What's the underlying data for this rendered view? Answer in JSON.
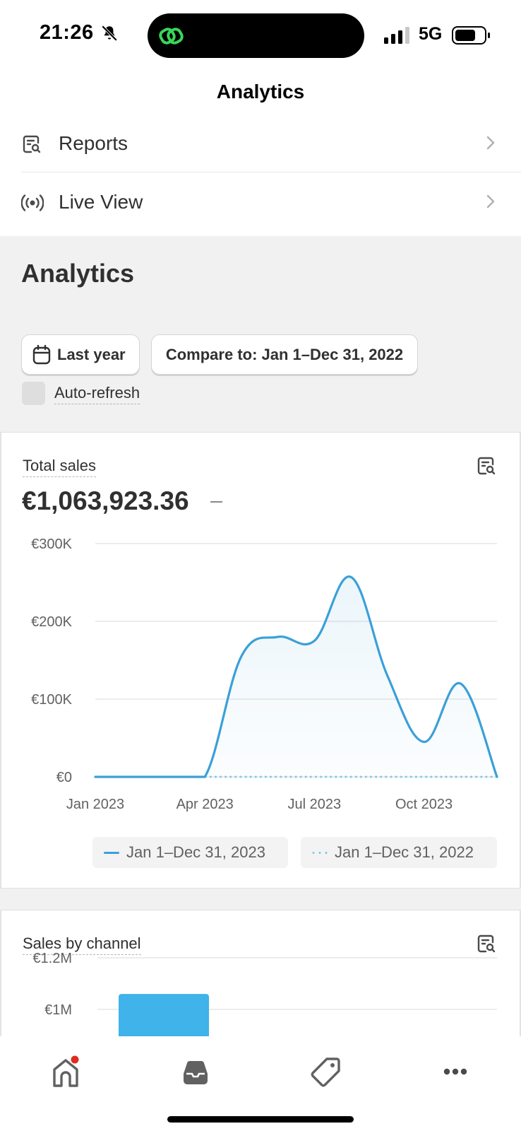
{
  "status": {
    "time": "21:26",
    "network": "5G"
  },
  "nav": {
    "title": "Analytics"
  },
  "menu": {
    "items": [
      {
        "label": "Reports",
        "icon": "report-search-icon"
      },
      {
        "label": "Live View",
        "icon": "broadcast-icon"
      }
    ]
  },
  "section": {
    "title": "Analytics",
    "date_range_label": "Last year",
    "compare_label": "Compare to: Jan 1–Dec 31, 2022",
    "auto_refresh_label": "Auto-refresh",
    "auto_refresh_checked": false
  },
  "total_sales": {
    "title": "Total sales",
    "value": "€1,063,923.36",
    "change": "–"
  },
  "chart_data": [
    {
      "type": "line",
      "title": "Total sales",
      "y_ticks": [
        "€300K",
        "€200K",
        "€100K",
        "€0"
      ],
      "x_ticks": [
        "Jan 2023",
        "Apr 2023",
        "Jul 2023",
        "Oct 2023"
      ],
      "ylim": [
        0,
        300000
      ],
      "x": [
        "2023-01",
        "2023-02",
        "2023-03",
        "2023-04",
        "2023-05",
        "2023-06",
        "2023-07",
        "2023-08",
        "2023-09",
        "2023-10",
        "2023-11",
        "2023-12"
      ],
      "series": [
        {
          "name": "Jan 1–Dec 31, 2023",
          "style": "solid",
          "color": "#3aa0d8",
          "values": [
            0,
            0,
            0,
            0,
            155000,
            180000,
            175000,
            257000,
            130000,
            45000,
            120000,
            0
          ]
        },
        {
          "name": "Jan 1–Dec 31, 2022",
          "style": "dotted",
          "color": "#7ec8e8",
          "values": [
            0,
            0,
            0,
            0,
            0,
            0,
            0,
            0,
            0,
            0,
            0,
            0
          ]
        }
      ],
      "legend": [
        "Jan 1–Dec 31, 2023",
        "Jan 1–Dec 31, 2022"
      ],
      "grid": true
    },
    {
      "type": "bar",
      "title": "Sales by channel",
      "y_ticks": [
        "€1.2M",
        "€1M"
      ],
      "ylim": [
        0,
        1200000
      ],
      "values": [
        1060000
      ],
      "color": "#3fb3ea"
    }
  ],
  "sales_by_channel": {
    "title": "Sales by channel"
  },
  "tabbar": {
    "items": [
      "home-icon",
      "inbox-icon",
      "tag-icon",
      "more-icon"
    ],
    "home_badge_color": "#e02b20"
  }
}
